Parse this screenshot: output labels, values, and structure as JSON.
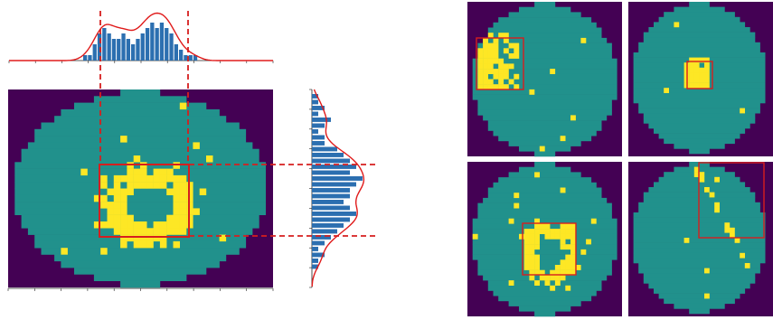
{
  "colors": {
    "background": "#440154",
    "wafer": "#21918c",
    "defect": "#fde725",
    "bars": "#2c6fb0",
    "curve": "#e01b1b",
    "box": "#d61e1e",
    "axis": "#222222"
  },
  "main_panel": {
    "defect_pattern": "donut",
    "x_histogram_counts": [
      1,
      1,
      3,
      5,
      6,
      5,
      4,
      4,
      5,
      4,
      3,
      4,
      5,
      6,
      7,
      6,
      7,
      6,
      5,
      3,
      2,
      1,
      1,
      1
    ],
    "y_histogram_counts": [
      1,
      1,
      2,
      1,
      3,
      2,
      1,
      2,
      2,
      4,
      5,
      6,
      7,
      6,
      8,
      7,
      6,
      6,
      5,
      6,
      7,
      6,
      5,
      4,
      3,
      2,
      1,
      2,
      1,
      1
    ]
  },
  "thumbnails": [
    {
      "pattern": "edge-local"
    },
    {
      "pattern": "center"
    },
    {
      "pattern": "donut"
    },
    {
      "pattern": "scratch"
    }
  ]
}
